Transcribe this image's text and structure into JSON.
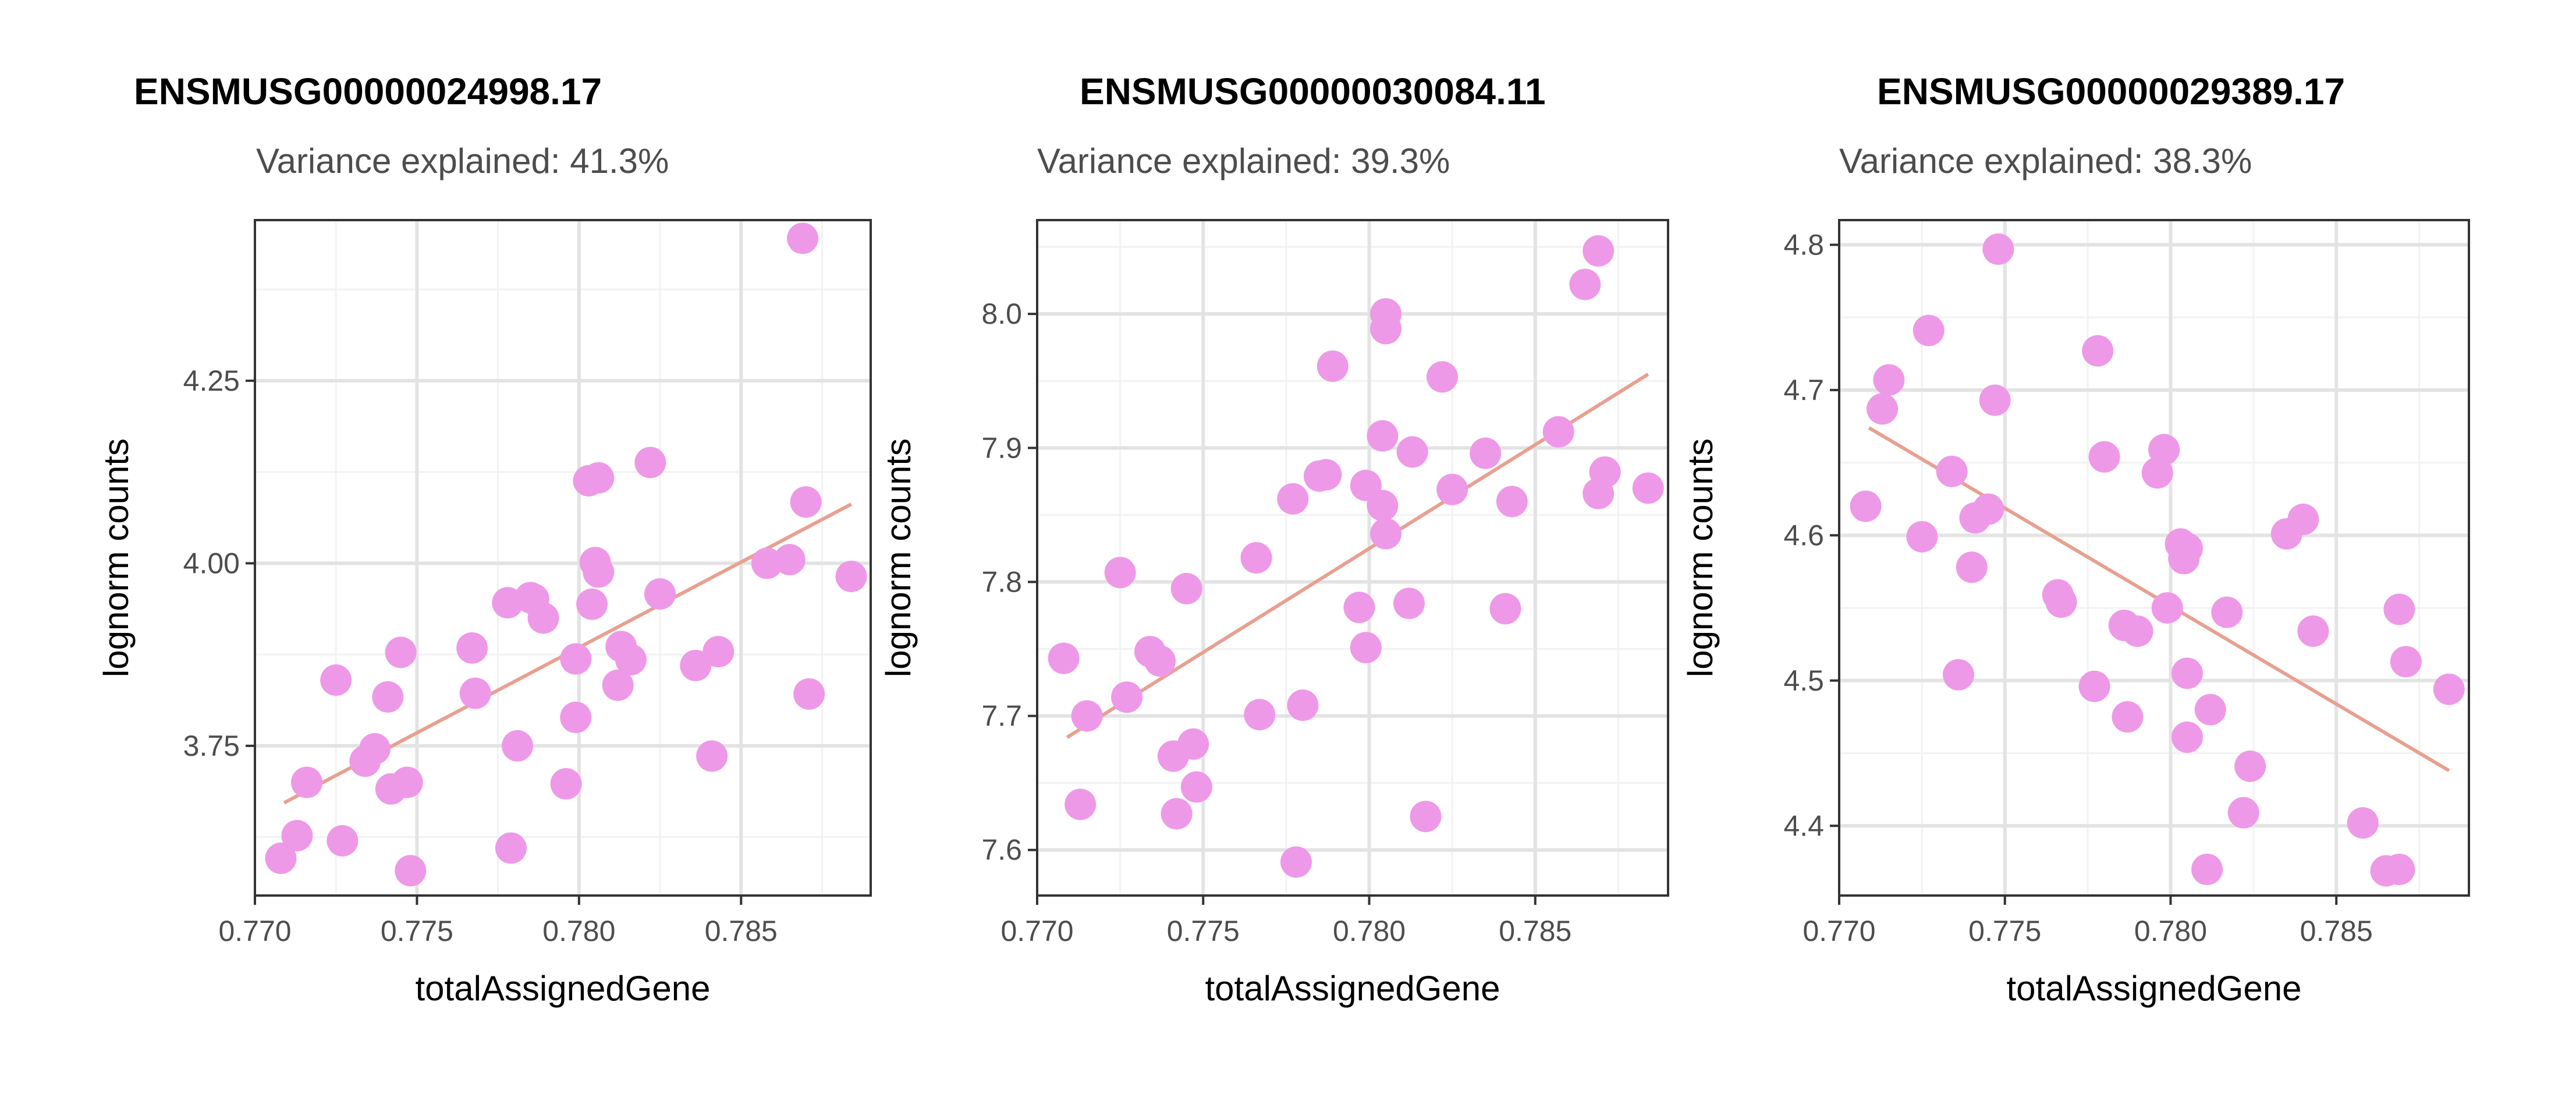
{
  "chart_data": [
    {
      "type": "scatter",
      "title": "ENSMUSG00000024998.17",
      "subtitle": "Variance explained: 41.3%",
      "xlabel": "totalAssignedGene",
      "ylabel": "lognorm counts",
      "xlim": [
        0.77,
        0.789
      ],
      "ylim": [
        3.545,
        4.47
      ],
      "xticks": [
        0.77,
        0.775,
        0.78,
        0.785
      ],
      "xtick_labels": [
        "0.770",
        "0.775",
        "0.780",
        "0.785"
      ],
      "yticks": [
        3.75,
        4.0,
        4.25
      ],
      "ytick_labels": [
        "3.75",
        "4.00",
        "4.25"
      ],
      "grid": true,
      "point_color": "#ee99e8",
      "line_color": "#e8a090",
      "trend": {
        "x": [
          0.7709,
          0.7884
        ],
        "y": [
          3.672,
          4.081
        ]
      },
      "points": [
        {
          "x": 0.7708,
          "y": 3.596
        },
        {
          "x": 0.7713,
          "y": 3.627
        },
        {
          "x": 0.7716,
          "y": 3.7
        },
        {
          "x": 0.7725,
          "y": 3.84
        },
        {
          "x": 0.7727,
          "y": 3.62
        },
        {
          "x": 0.7734,
          "y": 3.729
        },
        {
          "x": 0.7737,
          "y": 3.746
        },
        {
          "x": 0.7741,
          "y": 3.817
        },
        {
          "x": 0.7742,
          "y": 3.691
        },
        {
          "x": 0.7745,
          "y": 3.878
        },
        {
          "x": 0.7747,
          "y": 3.7
        },
        {
          "x": 0.7748,
          "y": 3.579
        },
        {
          "x": 0.7767,
          "y": 3.884
        },
        {
          "x": 0.7768,
          "y": 3.822
        },
        {
          "x": 0.7778,
          "y": 3.946
        },
        {
          "x": 0.7779,
          "y": 3.61
        },
        {
          "x": 0.7781,
          "y": 3.75
        },
        {
          "x": 0.7785,
          "y": 3.953
        },
        {
          "x": 0.7786,
          "y": 3.951
        },
        {
          "x": 0.7789,
          "y": 3.925
        },
        {
          "x": 0.7796,
          "y": 3.698
        },
        {
          "x": 0.7799,
          "y": 3.869
        },
        {
          "x": 0.7799,
          "y": 3.789
        },
        {
          "x": 0.7803,
          "y": 4.113
        },
        {
          "x": 0.7804,
          "y": 3.944
        },
        {
          "x": 0.7805,
          "y": 4.001
        },
        {
          "x": 0.7806,
          "y": 4.117
        },
        {
          "x": 0.7806,
          "y": 3.988
        },
        {
          "x": 0.7812,
          "y": 3.833
        },
        {
          "x": 0.7813,
          "y": 3.886
        },
        {
          "x": 0.7816,
          "y": 3.868
        },
        {
          "x": 0.7822,
          "y": 4.138
        },
        {
          "x": 0.7825,
          "y": 3.958
        },
        {
          "x": 0.7836,
          "y": 3.86
        },
        {
          "x": 0.7841,
          "y": 3.736
        },
        {
          "x": 0.7843,
          "y": 3.879
        },
        {
          "x": 0.7858,
          "y": 4.0
        },
        {
          "x": 0.7865,
          "y": 4.005
        },
        {
          "x": 0.7869,
          "y": 4.445
        },
        {
          "x": 0.787,
          "y": 4.084
        },
        {
          "x": 0.7871,
          "y": 3.821
        },
        {
          "x": 0.7884,
          "y": 3.982
        }
      ]
    },
    {
      "type": "scatter",
      "title": "ENSMUSG00000030084.11",
      "subtitle": "Variance explained: 39.3%",
      "xlabel": "totalAssignedGene",
      "ylabel": "lognorm counts",
      "xlim": [
        0.77,
        0.789
      ],
      "ylim": [
        7.566,
        8.07
      ],
      "xticks": [
        0.77,
        0.775,
        0.78,
        0.785
      ],
      "xtick_labels": [
        "0.770",
        "0.775",
        "0.780",
        "0.785"
      ],
      "yticks": [
        7.6,
        7.7,
        7.8,
        7.9,
        8.0
      ],
      "ytick_labels": [
        "7.6",
        "7.7",
        "7.8",
        "7.9",
        "8.0"
      ],
      "grid": true,
      "point_color": "#ee99e8",
      "line_color": "#e8a090",
      "trend": {
        "x": [
          0.7709,
          0.7884
        ],
        "y": [
          7.684,
          7.955
        ]
      },
      "points": [
        {
          "x": 0.7708,
          "y": 7.743
        },
        {
          "x": 0.7713,
          "y": 7.634
        },
        {
          "x": 0.7715,
          "y": 7.7
        },
        {
          "x": 0.7725,
          "y": 7.807
        },
        {
          "x": 0.7727,
          "y": 7.714
        },
        {
          "x": 0.7734,
          "y": 7.748
        },
        {
          "x": 0.7737,
          "y": 7.741
        },
        {
          "x": 0.7741,
          "y": 7.67
        },
        {
          "x": 0.7742,
          "y": 7.627
        },
        {
          "x": 0.7745,
          "y": 7.795
        },
        {
          "x": 0.7747,
          "y": 7.679
        },
        {
          "x": 0.7748,
          "y": 7.647
        },
        {
          "x": 0.7766,
          "y": 7.818
        },
        {
          "x": 0.7767,
          "y": 7.701
        },
        {
          "x": 0.7777,
          "y": 7.862
        },
        {
          "x": 0.7778,
          "y": 7.591
        },
        {
          "x": 0.778,
          "y": 7.708
        },
        {
          "x": 0.7785,
          "y": 7.879
        },
        {
          "x": 0.7787,
          "y": 7.88
        },
        {
          "x": 0.7789,
          "y": 7.961
        },
        {
          "x": 0.7797,
          "y": 7.781
        },
        {
          "x": 0.7799,
          "y": 7.751
        },
        {
          "x": 0.7799,
          "y": 7.872
        },
        {
          "x": 0.7804,
          "y": 7.857
        },
        {
          "x": 0.7804,
          "y": 7.909
        },
        {
          "x": 0.7805,
          "y": 7.989
        },
        {
          "x": 0.7805,
          "y": 8.0
        },
        {
          "x": 0.7805,
          "y": 7.836
        },
        {
          "x": 0.7812,
          "y": 7.784
        },
        {
          "x": 0.7813,
          "y": 7.897
        },
        {
          "x": 0.7817,
          "y": 7.625
        },
        {
          "x": 0.7822,
          "y": 7.953
        },
        {
          "x": 0.7825,
          "y": 7.869
        },
        {
          "x": 0.7835,
          "y": 7.896
        },
        {
          "x": 0.7841,
          "y": 7.78
        },
        {
          "x": 0.7843,
          "y": 7.86
        },
        {
          "x": 0.7857,
          "y": 7.912
        },
        {
          "x": 0.7865,
          "y": 8.022
        },
        {
          "x": 0.7869,
          "y": 8.047
        },
        {
          "x": 0.7869,
          "y": 7.866
        },
        {
          "x": 0.7871,
          "y": 7.882
        },
        {
          "x": 0.7884,
          "y": 7.87
        }
      ]
    },
    {
      "type": "scatter",
      "title": "ENSMUSG00000029389.17",
      "subtitle": "Variance explained: 38.3%",
      "xlabel": "totalAssignedGene",
      "ylabel": "lognorm counts",
      "xlim": [
        0.77,
        0.789
      ],
      "ylim": [
        4.352,
        4.817
      ],
      "xticks": [
        0.77,
        0.775,
        0.78,
        0.785
      ],
      "xtick_labels": [
        "0.770",
        "0.775",
        "0.780",
        "0.785"
      ],
      "yticks": [
        4.4,
        4.5,
        4.6,
        4.7,
        4.8
      ],
      "ytick_labels": [
        "4.4",
        "4.5",
        "4.6",
        "4.7",
        "4.8"
      ],
      "grid": true,
      "point_color": "#ee99e8",
      "line_color": "#e8a090",
      "trend": {
        "x": [
          0.7709,
          0.7884
        ],
        "y": [
          4.674,
          4.438
        ]
      },
      "points": [
        {
          "x": 0.7708,
          "y": 4.62
        },
        {
          "x": 0.7713,
          "y": 4.687
        },
        {
          "x": 0.7715,
          "y": 4.707
        },
        {
          "x": 0.7725,
          "y": 4.599
        },
        {
          "x": 0.7727,
          "y": 4.741
        },
        {
          "x": 0.7734,
          "y": 4.644
        },
        {
          "x": 0.7736,
          "y": 4.504
        },
        {
          "x": 0.774,
          "y": 4.578
        },
        {
          "x": 0.7741,
          "y": 4.612
        },
        {
          "x": 0.7745,
          "y": 4.618
        },
        {
          "x": 0.7747,
          "y": 4.693
        },
        {
          "x": 0.7748,
          "y": 4.797
        },
        {
          "x": 0.7766,
          "y": 4.559
        },
        {
          "x": 0.7767,
          "y": 4.554
        },
        {
          "x": 0.7777,
          "y": 4.496
        },
        {
          "x": 0.7778,
          "y": 4.727
        },
        {
          "x": 0.778,
          "y": 4.654
        },
        {
          "x": 0.7786,
          "y": 4.538
        },
        {
          "x": 0.7787,
          "y": 4.475
        },
        {
          "x": 0.779,
          "y": 4.534
        },
        {
          "x": 0.7796,
          "y": 4.643
        },
        {
          "x": 0.7798,
          "y": 4.659
        },
        {
          "x": 0.7799,
          "y": 4.55
        },
        {
          "x": 0.7803,
          "y": 4.594
        },
        {
          "x": 0.7804,
          "y": 4.584
        },
        {
          "x": 0.7805,
          "y": 4.591
        },
        {
          "x": 0.7805,
          "y": 4.505
        },
        {
          "x": 0.7805,
          "y": 4.461
        },
        {
          "x": 0.7811,
          "y": 4.37
        },
        {
          "x": 0.7812,
          "y": 4.48
        },
        {
          "x": 0.7817,
          "y": 4.547
        },
        {
          "x": 0.7822,
          "y": 4.409
        },
        {
          "x": 0.7824,
          "y": 4.441
        },
        {
          "x": 0.7835,
          "y": 4.601
        },
        {
          "x": 0.784,
          "y": 4.611
        },
        {
          "x": 0.7843,
          "y": 4.534
        },
        {
          "x": 0.7858,
          "y": 4.402
        },
        {
          "x": 0.7865,
          "y": 4.369
        },
        {
          "x": 0.7869,
          "y": 4.37
        },
        {
          "x": 0.7869,
          "y": 4.549
        },
        {
          "x": 0.7871,
          "y": 4.513
        },
        {
          "x": 0.7884,
          "y": 4.494
        }
      ]
    }
  ]
}
